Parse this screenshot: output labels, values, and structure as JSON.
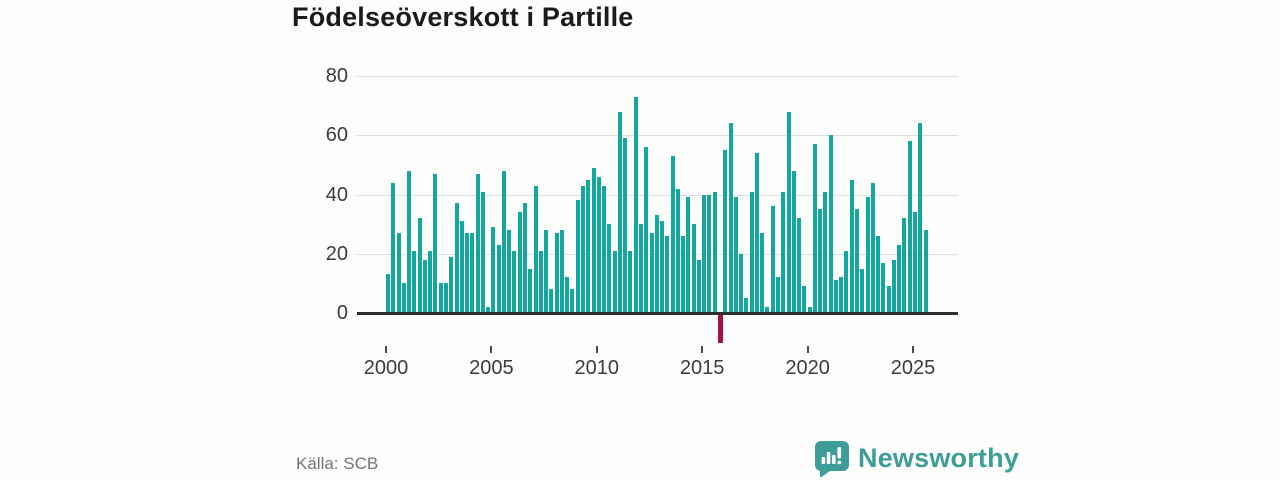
{
  "chart_data": {
    "type": "bar",
    "title": "Födelseöverskott i Partille",
    "frequency": "quarterly",
    "x_period_start": "2000 Q1",
    "x_period_end": "2025 Q3",
    "x_ticks": [
      "2000",
      "2005",
      "2010",
      "2015",
      "2020",
      "2025"
    ],
    "y_ticks": [
      0,
      20,
      40,
      60,
      80
    ],
    "ylim": [
      -12,
      80
    ],
    "grid": "horizontal",
    "legend": "none",
    "values": [
      13,
      44,
      27,
      10,
      48,
      21,
      32,
      18,
      21,
      47,
      10,
      10,
      19,
      37,
      31,
      27,
      27,
      47,
      41,
      2,
      29,
      23,
      48,
      28,
      21,
      34,
      37,
      15,
      43,
      21,
      28,
      8,
      27,
      28,
      12,
      8,
      38,
      43,
      45,
      49,
      46,
      43,
      30,
      21,
      68,
      59,
      21,
      73,
      30,
      56,
      27,
      33,
      31,
      26,
      53,
      42,
      26,
      39,
      30,
      18,
      40,
      40,
      41,
      -10,
      55,
      64,
      39,
      20,
      5,
      41,
      54,
      27,
      2,
      36,
      12,
      41,
      68,
      48,
      32,
      9,
      2,
      57,
      35,
      41,
      60,
      11,
      12,
      21,
      45,
      35,
      15,
      39,
      44,
      26,
      17,
      9,
      18,
      23,
      32,
      58,
      34,
      64,
      28
    ]
  },
  "colors": {
    "bar": "#14a79d",
    "negative_bar": "#a01249",
    "accent_teal": "#3d9d98",
    "grid": "#dedede",
    "baseline": "#2f2f2f",
    "axis_text": "#3c3c3c",
    "title_text": "#1b1b1b",
    "source_text": "#757575",
    "background": "#fdfdfb"
  },
  "footer": {
    "source": "Källa: SCB",
    "brand": "Newsworthy"
  }
}
